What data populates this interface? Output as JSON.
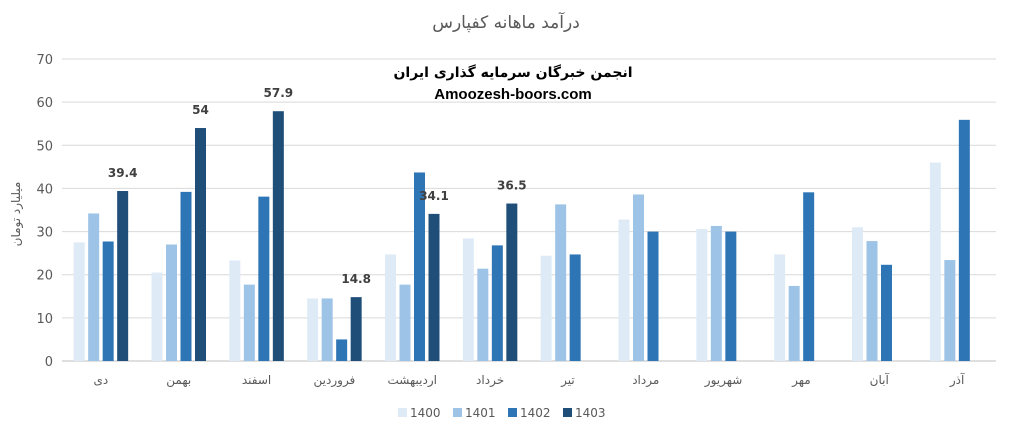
{
  "chart_data": {
    "type": "bar",
    "title": "درآمد ماهانه کفپارس",
    "ylabel": "میلیارد تومان",
    "ylim": [
      0,
      70
    ],
    "yticks": [
      0,
      10,
      20,
      30,
      40,
      50,
      60,
      70
    ],
    "grid": true,
    "legend_position": "bottom",
    "categories": [
      "دی",
      "بهمن",
      "اسفند",
      "فروردین",
      "اردیبهشت",
      "خرداد",
      "تیر",
      "مرداد",
      "شهریور",
      "مهر",
      "آبان",
      "آذر"
    ],
    "series": [
      {
        "name": "1400",
        "color": "#DEEBF7",
        "values": [
          27.5,
          20.5,
          23.3,
          14.5,
          24.7,
          28.4,
          24.4,
          32.8,
          30.6,
          24.7,
          31.0,
          46.0
        ]
      },
      {
        "name": "1401",
        "color": "#9DC3E6",
        "values": [
          34.2,
          27.0,
          17.7,
          14.5,
          17.7,
          21.4,
          36.3,
          38.6,
          31.3,
          17.4,
          27.8,
          23.4
        ]
      },
      {
        "name": "1402",
        "color": "#2E75B6",
        "values": [
          27.7,
          39.2,
          38.1,
          5.0,
          43.7,
          26.8,
          24.7,
          30.0,
          30.0,
          39.1,
          22.3,
          55.9
        ]
      },
      {
        "name": "1403",
        "color": "#1F4E79",
        "values": [
          39.4,
          54.0,
          57.9,
          14.8,
          34.1,
          36.5,
          null,
          null,
          null,
          null,
          null,
          null
        ]
      }
    ],
    "data_labels": {
      "series": "1403",
      "texts": [
        "39.4",
        "54",
        "57.9",
        "14.8",
        "34.1",
        "36.5",
        "",
        "",
        "",
        "",
        "",
        ""
      ]
    }
  },
  "watermark": {
    "line1": "انجمن خبرگان سرمایه گذاری ایران",
    "line2": "Amoozesh-boors.com"
  }
}
